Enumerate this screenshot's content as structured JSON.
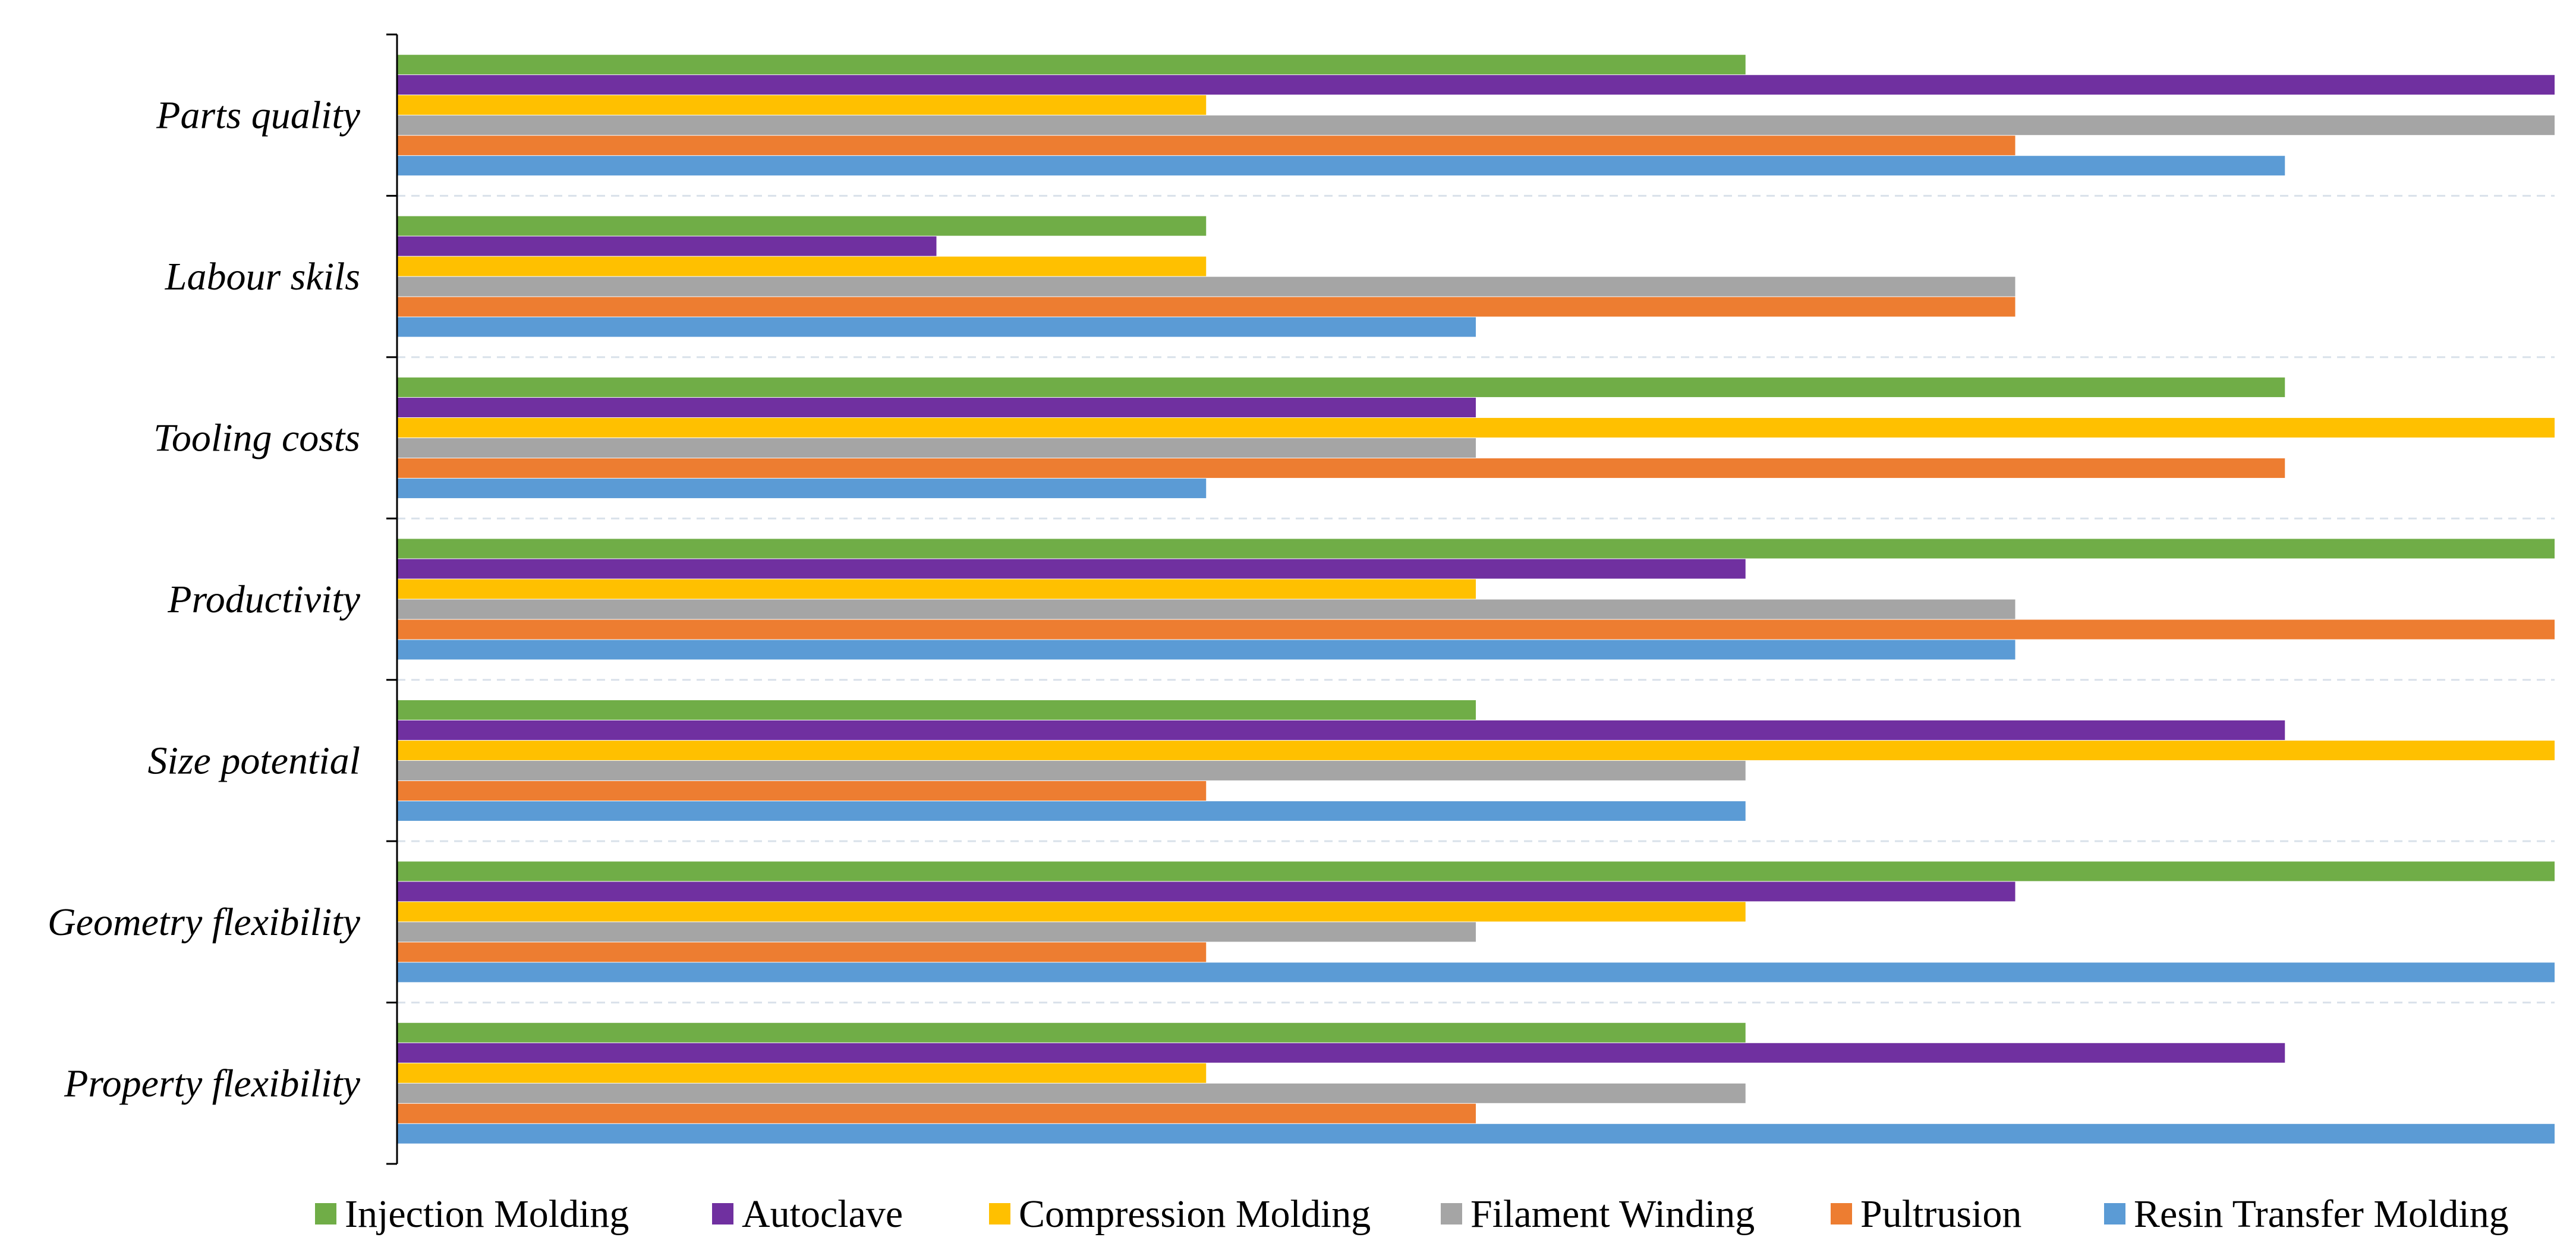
{
  "chart_data": {
    "type": "bar",
    "orientation": "horizontal",
    "title": "",
    "xlabel": "",
    "ylabel": "",
    "xlim": [
      0,
      8
    ],
    "grid": true,
    "legend_position": "bottom",
    "categories": [
      "Parts quality",
      "Labour skils",
      "Tooling costs",
      "Productivity",
      "Size potential",
      "Geometry flexibility",
      "Property flexibility"
    ],
    "series": [
      {
        "name": "Injection Molding",
        "color": "#70AD47",
        "values": [
          5,
          3,
          7,
          8,
          4,
          8,
          5
        ]
      },
      {
        "name": "Autoclave",
        "color": "#7030A0",
        "values": [
          8,
          2,
          4,
          5,
          7,
          6,
          7
        ]
      },
      {
        "name": "Compression Molding",
        "color": "#FFC000",
        "values": [
          3,
          3,
          8,
          4,
          8,
          5,
          3
        ]
      },
      {
        "name": "Filament Winding",
        "color": "#A5A5A5",
        "values": [
          8,
          6,
          4,
          6,
          5,
          4,
          5
        ]
      },
      {
        "name": "Pultrusion",
        "color": "#ED7D31",
        "values": [
          6,
          6,
          7,
          8,
          3,
          3,
          4
        ]
      },
      {
        "name": "Resin Transfer Molding",
        "color": "#5B9BD5",
        "values": [
          7,
          4,
          3,
          6,
          5,
          8,
          8
        ]
      }
    ]
  }
}
